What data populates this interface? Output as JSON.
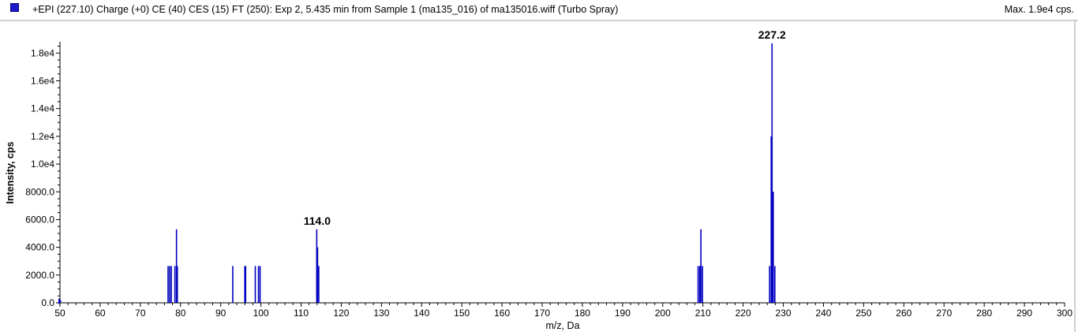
{
  "header": {
    "title": "+EPI (227.10) Charge (+0) CE (40) CES (15) FT (250): Exp 2, 5.435 min from Sample 1 (ma135_016) of ma135016.wiff (Turbo Spray)",
    "max": "Max. 1.9e4 cps."
  },
  "chart_data": {
    "type": "bar",
    "xlabel": "m/z, Da",
    "ylabel": "Intensity, cps",
    "xlim": [
      50,
      300
    ],
    "ylim": [
      0,
      18700
    ],
    "x_ticks": [
      50,
      60,
      70,
      80,
      90,
      100,
      110,
      120,
      130,
      140,
      150,
      160,
      170,
      180,
      190,
      200,
      210,
      220,
      230,
      240,
      250,
      260,
      270,
      280,
      290,
      300
    ],
    "y_ticks": [
      {
        "value": 0,
        "label": "0.0"
      },
      {
        "value": 2000,
        "label": "2000.0"
      },
      {
        "value": 4000,
        "label": "4000.0"
      },
      {
        "value": 6000,
        "label": "6000.0"
      },
      {
        "value": 8000,
        "label": "8000.0"
      },
      {
        "value": 10000,
        "label": "1.0e4"
      },
      {
        "value": 12000,
        "label": "1.2e4"
      },
      {
        "value": 14000,
        "label": "1.4e4"
      },
      {
        "value": 16000,
        "label": "1.6e4"
      },
      {
        "value": 18000,
        "label": "1.8e4"
      }
    ],
    "color": "#0000c0",
    "peaks": [
      {
        "mz": 76.9,
        "intensity": 2650
      },
      {
        "mz": 77.3,
        "intensity": 2650
      },
      {
        "mz": 77.7,
        "intensity": 2650
      },
      {
        "mz": 78.6,
        "intensity": 2650
      },
      {
        "mz": 79.0,
        "intensity": 5300
      },
      {
        "mz": 79.2,
        "intensity": 2650
      },
      {
        "mz": 93.0,
        "intensity": 2650
      },
      {
        "mz": 96.0,
        "intensity": 2650
      },
      {
        "mz": 96.2,
        "intensity": 2650
      },
      {
        "mz": 98.6,
        "intensity": 2650
      },
      {
        "mz": 99.4,
        "intensity": 2650
      },
      {
        "mz": 99.8,
        "intensity": 2650
      },
      {
        "mz": 113.9,
        "intensity": 5300
      },
      {
        "mz": 114.1,
        "intensity": 4000
      },
      {
        "mz": 114.4,
        "intensity": 2650
      },
      {
        "mz": 208.8,
        "intensity": 2650
      },
      {
        "mz": 209.2,
        "intensity": 2650
      },
      {
        "mz": 209.5,
        "intensity": 5300
      },
      {
        "mz": 209.9,
        "intensity": 2650
      },
      {
        "mz": 226.6,
        "intensity": 2650
      },
      {
        "mz": 227.0,
        "intensity": 12000
      },
      {
        "mz": 227.2,
        "intensity": 18700
      },
      {
        "mz": 227.5,
        "intensity": 8000
      },
      {
        "mz": 227.9,
        "intensity": 2650
      }
    ],
    "annotations": [
      {
        "text": "114.0",
        "mz": 114.0,
        "intensity": 5300
      },
      {
        "text": "227.2",
        "mz": 227.2,
        "intensity": 18700
      }
    ]
  }
}
